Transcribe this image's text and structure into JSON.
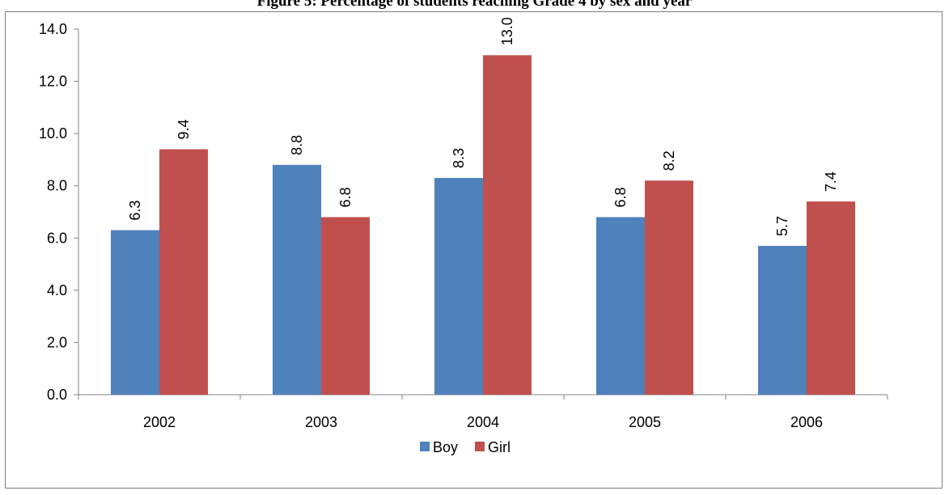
{
  "chart_data": {
    "type": "bar",
    "title": "Figure 5: Percentage of students reaching Grade 4 by sex and year",
    "xlabel": "",
    "ylabel": "",
    "categories": [
      "2002",
      "2003",
      "2004",
      "2005",
      "2006"
    ],
    "series": [
      {
        "name": "Boy",
        "color": "#4f81bd",
        "values": [
          6.3,
          8.8,
          8.3,
          6.8,
          5.7
        ]
      },
      {
        "name": "Girl",
        "color": "#c0504d",
        "values": [
          9.4,
          6.8,
          13.0,
          8.2,
          7.4
        ]
      }
    ],
    "data_labels": [
      [
        "6.3",
        "8.8",
        "8.3",
        "6.8",
        "5.7"
      ],
      [
        "9.4",
        "6.8",
        "13.0",
        "8.2",
        "7.4"
      ]
    ],
    "ylim": [
      0,
      14
    ],
    "yticks": [
      "0.0",
      "2.0",
      "4.0",
      "6.0",
      "8.0",
      "10.0",
      "12.0",
      "14.0"
    ],
    "grid": false,
    "legend_position": "bottom"
  }
}
